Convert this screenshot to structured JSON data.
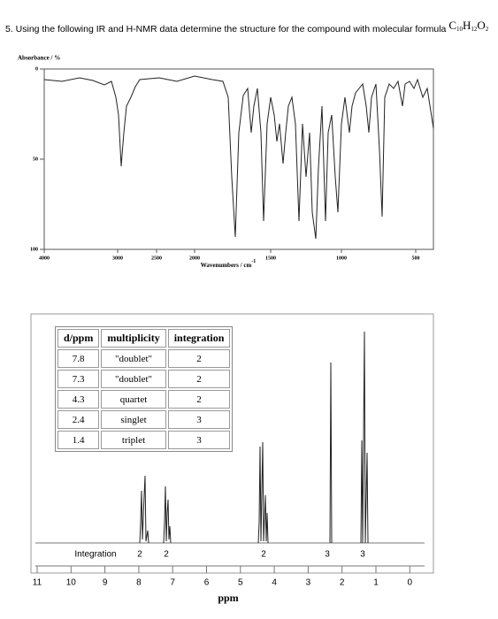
{
  "question": {
    "text": "5. Using the following IR and H-NMR data determine the structure for the compound with molecular formula ",
    "formula": [
      "C",
      "10",
      "H",
      "12",
      "O",
      "2"
    ]
  },
  "ir": {
    "y_label": "Absorbance / %",
    "y_ticks": [
      "0",
      "50",
      "100"
    ],
    "x_ticks": [
      "4000",
      "3000",
      "2500",
      "2000",
      "1500",
      "1000",
      "500"
    ],
    "x_label": "Wavenumbers / cm",
    "x_label_sup": "-1"
  },
  "nmr": {
    "table": {
      "header": [
        "d/ppm",
        "multiplicity",
        "integration"
      ],
      "rows": [
        [
          "7.8",
          "\"doublet\"",
          "2"
        ],
        [
          "7.3",
          "\"doublet\"",
          "2"
        ],
        [
          "4.3",
          "quartet",
          "2"
        ],
        [
          "2.4",
          "singlet",
          "3"
        ],
        [
          "1.4",
          "triplet",
          "3"
        ]
      ]
    },
    "integration_label": "Integration",
    "integrations": [
      "2",
      "2",
      "2",
      "3",
      "3"
    ],
    "x_ticks": [
      "11",
      "10",
      "9",
      "8",
      "7",
      "6",
      "5",
      "4",
      "3",
      "2",
      "1",
      "0"
    ],
    "x_label": "ppm"
  }
}
